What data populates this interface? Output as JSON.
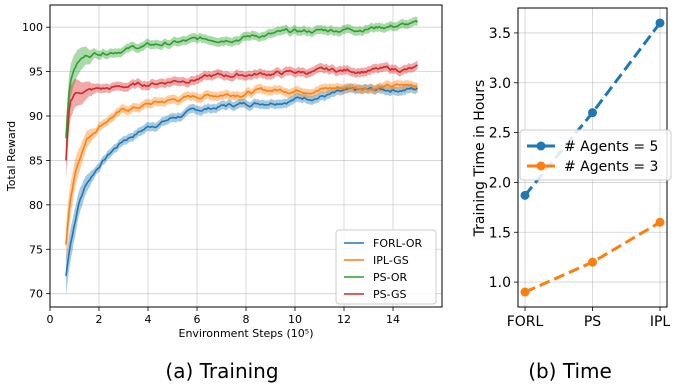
{
  "chart_data": [
    {
      "type": "line",
      "caption": "(a) Training",
      "xlabel": "Environment Steps (10⁵)",
      "ylabel": "Total Reward",
      "xlim": [
        0,
        16
      ],
      "ylim": [
        68.5,
        102.5
      ],
      "xticks": [
        0,
        2,
        4,
        6,
        8,
        10,
        12,
        14
      ],
      "yticks": [
        70,
        75,
        80,
        85,
        90,
        95,
        100
      ],
      "grid": true,
      "legend_position": "lower-right",
      "shaded_bands": true,
      "series": [
        {
          "name": "FORL-OR",
          "color": "#1f77b4",
          "x": [
            0.65,
            0.8,
            1.0,
            1.2,
            1.5,
            2.0,
            2.5,
            3.0,
            4.0,
            5.0,
            6.0,
            7.0,
            8.0,
            9.0,
            10.0,
            11.0,
            12.0,
            13.0,
            14.0,
            15.0
          ],
          "y": [
            72,
            75,
            78,
            80.5,
            82.5,
            84.5,
            86,
            87.3,
            88.8,
            89.8,
            90.6,
            91.1,
            91.4,
            91.7,
            92,
            92.3,
            92.6,
            92.8,
            93,
            93.1
          ]
        },
        {
          "name": "IPL-GS",
          "color": "#ff7f0e",
          "x": [
            0.65,
            0.8,
            1.0,
            1.2,
            1.5,
            2.0,
            2.5,
            3.0,
            4.0,
            5.0,
            6.0,
            7.0,
            8.0,
            9.0,
            10.0,
            11.0,
            12.0,
            13.0,
            14.0,
            15.0
          ],
          "y": [
            75.5,
            80,
            83.5,
            85.5,
            87.5,
            89,
            90,
            90.6,
            91.3,
            91.8,
            92.2,
            92.5,
            92.7,
            92.9,
            93,
            93.1,
            93.2,
            93.3,
            93.3,
            93.4
          ]
        },
        {
          "name": "PS-OR",
          "color": "#2ca02c",
          "x": [
            0.65,
            0.8,
            1.0,
            1.2,
            1.5,
            2.0,
            2.5,
            3.0,
            4.0,
            5.0,
            6.0,
            7.0,
            8.0,
            9.0,
            10.0,
            11.0,
            12.0,
            13.0,
            14.0,
            15.0
          ],
          "y": [
            87.5,
            93.5,
            95.5,
            96.3,
            96.8,
            97.2,
            97.4,
            97.6,
            97.9,
            98.2,
            98.5,
            98.8,
            99,
            99.2,
            99.4,
            99.6,
            99.8,
            100,
            100.2,
            100.3
          ]
        },
        {
          "name": "PS-GS",
          "color": "#d62728",
          "x": [
            0.65,
            0.8,
            1.0,
            1.2,
            1.5,
            2.0,
            2.5,
            3.0,
            4.0,
            5.0,
            6.0,
            7.0,
            8.0,
            9.0,
            10.0,
            11.0,
            12.0,
            13.0,
            14.0,
            15.0
          ],
          "y": [
            85,
            91.5,
            92.5,
            92.8,
            92.9,
            93,
            93.1,
            93.3,
            93.6,
            94,
            94.3,
            94.5,
            94.7,
            94.8,
            94.9,
            95,
            95.1,
            95.2,
            95.2,
            95.3
          ]
        }
      ]
    },
    {
      "type": "line",
      "caption": "(b) Time",
      "xlabel": "",
      "ylabel": "Training Time in Hours",
      "categories": [
        "FORL",
        "PS",
        "IPL"
      ],
      "ylim": [
        0.75,
        3.75
      ],
      "yticks": [
        1.0,
        1.5,
        2.0,
        2.5,
        3.0,
        3.5
      ],
      "grid": true,
      "legend_position": "center",
      "series": [
        {
          "name": "# Agents = 5",
          "color": "#1f77b4",
          "values": [
            1.87,
            2.7,
            3.6
          ]
        },
        {
          "name": "# Agents = 3",
          "color": "#ff7f0e",
          "values": [
            0.9,
            1.2,
            1.6
          ]
        }
      ]
    }
  ]
}
